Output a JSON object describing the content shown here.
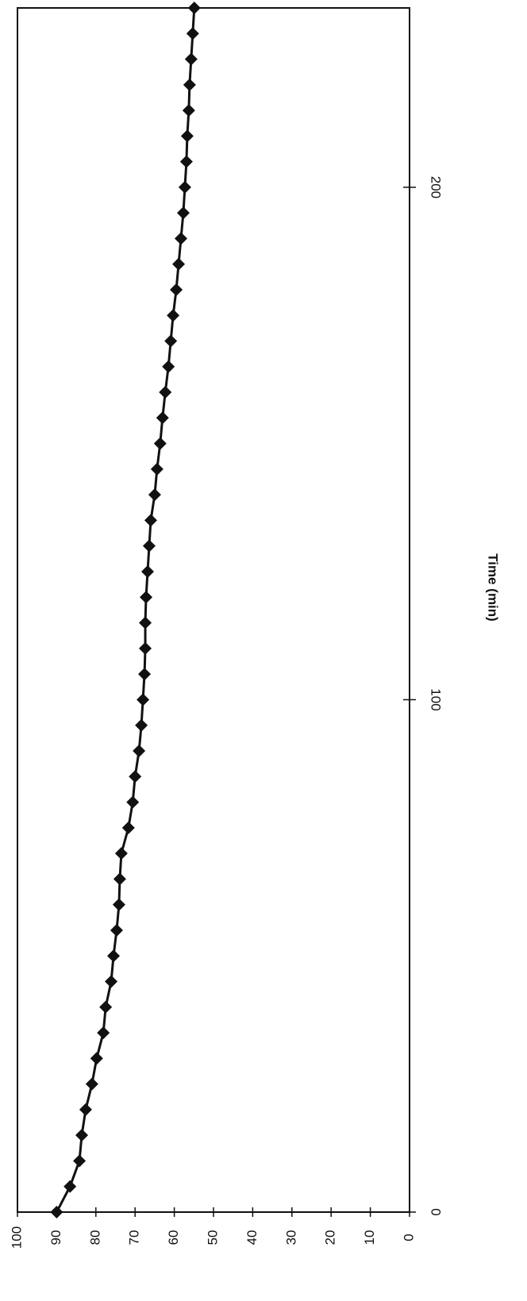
{
  "chart_data": {
    "type": "line",
    "x_label": "Time (min)",
    "x": [
      0,
      5,
      10,
      15,
      20,
      25,
      30,
      35,
      40,
      45,
      50,
      55,
      60,
      65,
      70,
      75,
      80,
      85,
      90,
      95,
      100,
      105,
      110,
      115,
      120,
      125,
      130,
      135,
      140,
      145,
      150,
      155,
      160,
      165,
      170,
      175,
      180,
      185,
      190,
      195,
      200,
      205,
      210,
      215,
      220,
      225,
      230,
      235
    ],
    "series": [
      {
        "color": "#111111",
        "values": [
          90,
          86.6,
          84.2,
          83.6,
          82.6,
          81,
          79.8,
          78.1,
          77.5,
          76.1,
          75.5,
          74.7,
          74.1,
          73.9,
          73.5,
          71.7,
          70.6,
          70,
          69,
          68.4,
          68,
          67.6,
          67.4,
          67.4,
          67.2,
          66.8,
          66.4,
          66,
          65,
          64.4,
          63.6,
          63,
          62.3,
          61.5,
          60.9,
          60.3,
          59.5,
          58.9,
          58.3,
          57.7,
          57.3,
          56.9,
          56.7,
          56.3,
          56.1,
          55.7,
          55.3,
          54.9
        ]
      }
    ],
    "xlim": [
      0,
      235
    ],
    "xticks": [
      0,
      100,
      200
    ],
    "ylim": [
      0,
      100
    ],
    "yticks": [
      0,
      10,
      20,
      30,
      40,
      50,
      60,
      70,
      80,
      90,
      100
    ]
  }
}
